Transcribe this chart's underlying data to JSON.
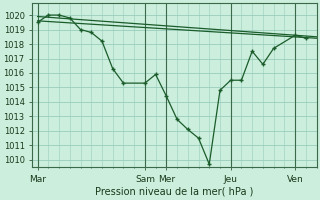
{
  "background_color": "#cceedd",
  "grid_color": "#99ccbb",
  "line_color": "#1a5c2a",
  "xlabel": "Pression niveau de la mer( hPa )",
  "ylim": [
    1009.5,
    1020.8
  ],
  "yticks": [
    1010,
    1011,
    1012,
    1013,
    1014,
    1015,
    1016,
    1017,
    1018,
    1019,
    1020
  ],
  "xtick_labels": [
    "Mar",
    "Sam",
    "Mer",
    "Jeu",
    "Ven"
  ],
  "xtick_positions": [
    0,
    10,
    12,
    18,
    24
  ],
  "xlim": [
    -0.5,
    26
  ],
  "series1_x": [
    0,
    1,
    2,
    3,
    4,
    5,
    6,
    7,
    8,
    10,
    11,
    12,
    13,
    14,
    15,
    16,
    17,
    18,
    19,
    20,
    21,
    22,
    24,
    25
  ],
  "series1_y": [
    1019.5,
    1020.0,
    1020.0,
    1019.8,
    1019.0,
    1018.8,
    1018.2,
    1016.3,
    1015.3,
    1015.3,
    1015.9,
    1014.4,
    1012.8,
    1012.1,
    1011.5,
    1009.7,
    1014.8,
    1015.5,
    1015.5,
    1017.5,
    1016.6,
    1017.7,
    1018.6,
    1018.4
  ],
  "series2_x": [
    0,
    26
  ],
  "series2_y": [
    1019.6,
    1018.4
  ],
  "series3_x": [
    0,
    26
  ],
  "series3_y": [
    1019.9,
    1018.5
  ],
  "vline_positions": [
    0,
    10,
    12,
    18,
    24
  ]
}
